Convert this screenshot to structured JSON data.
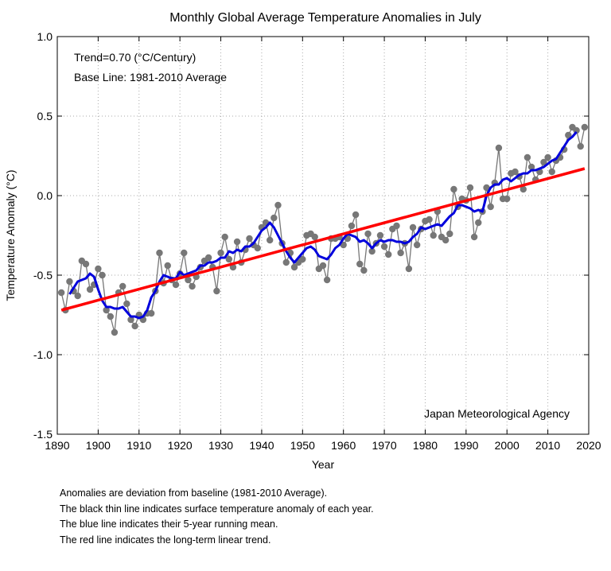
{
  "chart_data": {
    "type": "line",
    "title": "Monthly Global Average Temperature Anomalies in July",
    "xlabel": "Year",
    "ylabel": "Temperature Anomaly (°C)",
    "xlim": [
      1890,
      2020
    ],
    "ylim": [
      -1.5,
      1.0
    ],
    "xticks": [
      1890,
      1900,
      1910,
      1920,
      1930,
      1940,
      1950,
      1960,
      1970,
      1980,
      1990,
      2000,
      2010,
      2020
    ],
    "yticks": [
      -1.5,
      -1.0,
      -0.5,
      0.0,
      0.5,
      1.0
    ],
    "grid": true,
    "annotations": {
      "trend": "Trend=0.70 (°C/Century)",
      "baseline": "Base Line: 1981-2010 Average",
      "agency": "Japan Meteorological Agency"
    },
    "x": [
      1891,
      1892,
      1893,
      1894,
      1895,
      1896,
      1897,
      1898,
      1899,
      1900,
      1901,
      1902,
      1903,
      1904,
      1905,
      1906,
      1907,
      1908,
      1909,
      1910,
      1911,
      1912,
      1913,
      1914,
      1915,
      1916,
      1917,
      1918,
      1919,
      1920,
      1921,
      1922,
      1923,
      1924,
      1925,
      1926,
      1927,
      1928,
      1929,
      1930,
      1931,
      1932,
      1933,
      1934,
      1935,
      1936,
      1937,
      1938,
      1939,
      1940,
      1941,
      1942,
      1943,
      1944,
      1945,
      1946,
      1947,
      1948,
      1949,
      1950,
      1951,
      1952,
      1953,
      1954,
      1955,
      1956,
      1957,
      1958,
      1959,
      1960,
      1961,
      1962,
      1963,
      1964,
      1965,
      1966,
      1967,
      1968,
      1969,
      1970,
      1971,
      1972,
      1973,
      1974,
      1975,
      1976,
      1977,
      1978,
      1979,
      1980,
      1981,
      1982,
      1983,
      1984,
      1985,
      1986,
      1987,
      1988,
      1989,
      1990,
      1991,
      1992,
      1993,
      1994,
      1995,
      1996,
      1997,
      1998,
      1999,
      2000,
      2001,
      2002,
      2003,
      2004,
      2005,
      2006,
      2007,
      2008,
      2009,
      2010,
      2011,
      2012,
      2013,
      2014,
      2015,
      2016,
      2017,
      2018,
      2019
    ],
    "series": [
      {
        "kind": "annual",
        "color": "#777777",
        "values": [
          -0.61,
          -0.72,
          -0.54,
          -0.6,
          -0.63,
          -0.41,
          -0.43,
          -0.59,
          -0.56,
          -0.46,
          -0.5,
          -0.72,
          -0.76,
          -0.86,
          -0.61,
          -0.57,
          -0.68,
          -0.78,
          -0.82,
          -0.75,
          -0.78,
          -0.74,
          -0.74,
          -0.6,
          -0.36,
          -0.55,
          -0.44,
          -0.53,
          -0.56,
          -0.49,
          -0.36,
          -0.53,
          -0.57,
          -0.51,
          -0.45,
          -0.41,
          -0.39,
          -0.45,
          -0.6,
          -0.36,
          -0.26,
          -0.4,
          -0.45,
          -0.29,
          -0.42,
          -0.34,
          -0.27,
          -0.31,
          -0.33,
          -0.2,
          -0.17,
          -0.28,
          -0.14,
          -0.06,
          -0.3,
          -0.42,
          -0.36,
          -0.45,
          -0.42,
          -0.4,
          -0.25,
          -0.24,
          -0.26,
          -0.46,
          -0.44,
          -0.53,
          -0.27,
          -0.27,
          -0.26,
          -0.31,
          -0.27,
          -0.19,
          -0.12,
          -0.43,
          -0.47,
          -0.24,
          -0.35,
          -0.3,
          -0.25,
          -0.32,
          -0.37,
          -0.21,
          -0.19,
          -0.36,
          -0.3,
          -0.46,
          -0.2,
          -0.31,
          -0.21,
          -0.16,
          -0.15,
          -0.25,
          -0.1,
          -0.26,
          -0.28,
          -0.24,
          0.04,
          -0.07,
          -0.02,
          -0.03,
          0.05,
          -0.26,
          -0.17,
          -0.1,
          0.05,
          -0.07,
          0.08,
          0.3,
          -0.02,
          -0.02,
          0.14,
          0.15,
          0.12,
          0.04,
          0.24,
          0.18,
          0.1,
          0.15,
          0.21,
          0.24,
          0.15,
          0.22,
          0.24,
          0.29,
          0.38,
          0.43,
          0.41,
          0.31,
          0.43
        ]
      },
      {
        "kind": "running_mean",
        "color": "#0000dd",
        "values": [
          null,
          null,
          -0.62,
          -0.58,
          -0.54,
          -0.53,
          -0.52,
          -0.49,
          -0.51,
          -0.59,
          -0.66,
          -0.7,
          -0.7,
          -0.71,
          -0.71,
          -0.7,
          -0.73,
          -0.76,
          -0.76,
          -0.77,
          -0.76,
          -0.72,
          -0.64,
          -0.6,
          -0.54,
          -0.5,
          -0.51,
          -0.52,
          -0.52,
          -0.48,
          -0.5,
          -0.49,
          -0.48,
          -0.47,
          -0.44,
          -0.44,
          -0.42,
          -0.42,
          -0.41,
          -0.39,
          -0.39,
          -0.35,
          -0.36,
          -0.34,
          -0.35,
          -0.32,
          -0.32,
          -0.3,
          -0.26,
          -0.22,
          -0.2,
          -0.17,
          -0.2,
          -0.25,
          -0.3,
          -0.35,
          -0.39,
          -0.42,
          -0.39,
          -0.36,
          -0.33,
          -0.32,
          -0.34,
          -0.38,
          -0.39,
          -0.4,
          -0.37,
          -0.33,
          -0.31,
          -0.27,
          -0.24,
          -0.25,
          -0.26,
          -0.29,
          -0.28,
          -0.3,
          -0.33,
          -0.3,
          -0.28,
          -0.29,
          -0.28,
          -0.28,
          -0.29,
          -0.29,
          -0.3,
          -0.29,
          -0.26,
          -0.24,
          -0.2,
          -0.21,
          -0.2,
          -0.19,
          -0.18,
          -0.19,
          -0.16,
          -0.13,
          -0.11,
          -0.06,
          -0.06,
          -0.07,
          -0.08,
          -0.1,
          -0.09,
          -0.1,
          0.0,
          0.05,
          0.07,
          0.07,
          0.1,
          0.11,
          0.09,
          0.11,
          0.13,
          0.14,
          0.14,
          0.16,
          0.16,
          0.17,
          0.18,
          0.2,
          0.22,
          0.23,
          0.27,
          0.31,
          0.35,
          0.37,
          0.4,
          null,
          null
        ]
      },
      {
        "kind": "trend",
        "color": "#ff0000",
        "x": [
          1891,
          2019
        ],
        "values": [
          -0.72,
          0.17
        ]
      }
    ]
  },
  "notes": [
    "Anomalies are deviation from baseline (1981-2010 Average).",
    "The black thin line indicates surface temperature anomaly of each year.",
    "The blue line indicates their 5-year running mean.",
    "The red line indicates the long-term linear trend."
  ]
}
